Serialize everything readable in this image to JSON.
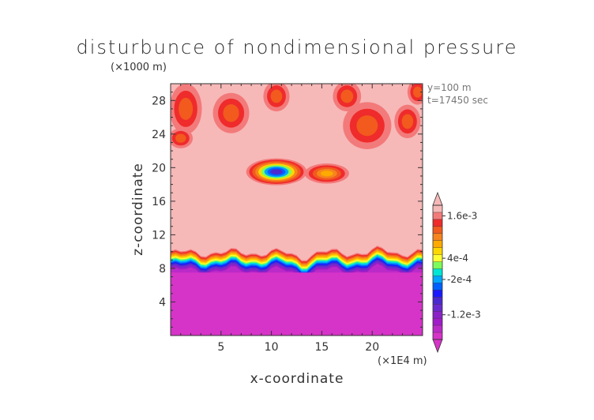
{
  "title": "disturbunce of nondimensional pressure",
  "y_unit_note": "(×1000 m)",
  "x_unit_note": "(×1E4 m)",
  "annotations": [
    "y=100 m",
    "t=17450 sec"
  ],
  "colors": {
    "background_field": "#f7b8b8",
    "lower_band": "#d633c8",
    "frame": "#333333"
  },
  "chart_data": {
    "type": "heatmap",
    "title": "disturbunce of nondimensional pressure",
    "xlabel": "x-coordinate",
    "ylabel": "z-coordinate",
    "xlim": [
      0,
      25
    ],
    "ylim": [
      0,
      30
    ],
    "x_ticks": [
      5,
      10,
      15,
      20
    ],
    "y_ticks": [
      4,
      8,
      12,
      16,
      20,
      24,
      28
    ],
    "colorbar": {
      "tick_labels": [
        {
          "value": 0.0016,
          "label": "1.6e-3"
        },
        {
          "value": 0.0004,
          "label": "4e-4"
        },
        {
          "value": -0.0002,
          "label": "-2e-4"
        },
        {
          "value": -0.0012,
          "label": "-1.2e-3"
        }
      ],
      "levels": [
        {
          "value": 0.0018,
          "color": "#f7b8b8"
        },
        {
          "value": 0.0016,
          "color": "#f37a7a"
        },
        {
          "value": 0.0014,
          "color": "#ef2b2b"
        },
        {
          "value": 0.0012,
          "color": "#f25a1e"
        },
        {
          "value": 0.001,
          "color": "#f6851e"
        },
        {
          "value": 0.0008,
          "color": "#ffaa00"
        },
        {
          "value": 0.0006,
          "color": "#ffd700"
        },
        {
          "value": 0.0004,
          "color": "#ffff33"
        },
        {
          "value": 0.0002,
          "color": "#7cfc5a"
        },
        {
          "value": 0.0,
          "color": "#00e5d5"
        },
        {
          "value": -0.0002,
          "color": "#00a6ff"
        },
        {
          "value": -0.0004,
          "color": "#0060ff"
        },
        {
          "value": -0.0006,
          "color": "#1a1aff"
        },
        {
          "value": -0.0008,
          "color": "#4a2acf"
        },
        {
          "value": -0.001,
          "color": "#6a2acf"
        },
        {
          "value": -0.0012,
          "color": "#8a22c8"
        },
        {
          "value": -0.0014,
          "color": "#a01cc8"
        },
        {
          "value": -0.0016,
          "color": "#bb2ac8"
        },
        {
          "value": -0.0018,
          "color": "#d633c8"
        }
      ]
    },
    "features": [
      {
        "kind": "uniform_region",
        "z_range": [
          0,
          7.8
        ],
        "value": -0.0018
      },
      {
        "kind": "transition_band",
        "z_range": [
          7.8,
          10
        ],
        "from": -0.0018,
        "to": 0.0016
      },
      {
        "kind": "background",
        "value": 0.0018
      },
      {
        "kind": "negative_anomaly",
        "x": 10.5,
        "z": 19.5,
        "min": -0.0008
      },
      {
        "kind": "positive_anomaly",
        "x": 15.5,
        "z": 19.3,
        "max": 0.0008
      },
      {
        "kind": "upper_positive_patches",
        "z_range": [
          22,
          30
        ],
        "max": 0.0014
      }
    ]
  }
}
